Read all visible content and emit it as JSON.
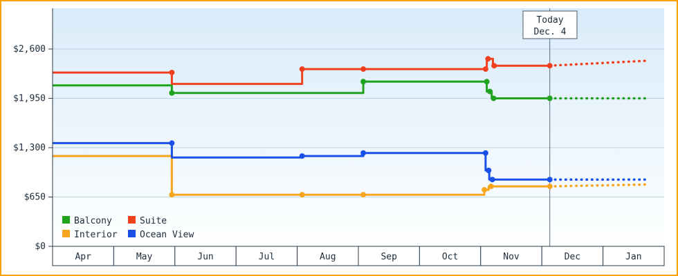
{
  "chart_data": {
    "type": "line",
    "style": "stepped-price-history-with-dotted-forecast",
    "x_months": [
      "Apr",
      "May",
      "Jun",
      "Jul",
      "Aug",
      "Sep",
      "Oct",
      "Nov",
      "Dec",
      "Jan"
    ],
    "y_ticks": [
      {
        "value": 0,
        "label": "$0"
      },
      {
        "value": 650,
        "label": "$650"
      },
      {
        "value": 1300,
        "label": "$1,300"
      },
      {
        "value": 1950,
        "label": "$1,950"
      },
      {
        "value": 2600,
        "label": "$2,600"
      }
    ],
    "today": {
      "line1": "Today",
      "line2": "Dec. 4",
      "month_index": 8.13
    },
    "colors": {
      "frame_border": "#ffa200",
      "grid": "#b9d2e6",
      "axis": "#2a3a4a",
      "plot_bg_top": "#d9ebf9",
      "plot_bg_bottom": "#feffff",
      "today_line": "#5a6b7a"
    },
    "legend": {
      "items": [
        {
          "label": "Balcony",
          "color": "#1fa31f"
        },
        {
          "label": "Suite",
          "color": "#f0401e"
        },
        {
          "label": "Interior",
          "color": "#f7a51f"
        },
        {
          "label": "Ocean View",
          "color": "#1850e8"
        }
      ]
    },
    "series": [
      {
        "name": "Interior",
        "color": "#f7a51f",
        "points": [
          [
            0,
            1190
          ],
          [
            1.95,
            1190
          ],
          [
            1.95,
            680
          ],
          [
            7.06,
            680
          ],
          [
            7.06,
            745
          ],
          [
            7.13,
            745
          ],
          [
            7.13,
            790
          ],
          [
            8.13,
            790
          ]
        ],
        "markers": [
          [
            1.95,
            680
          ],
          [
            4.08,
            680
          ],
          [
            5.08,
            680
          ],
          [
            7.06,
            745
          ],
          [
            7.17,
            790
          ],
          [
            8.13,
            790
          ]
        ],
        "forecast": [
          [
            8.13,
            790
          ],
          [
            9.7,
            815
          ]
        ]
      },
      {
        "name": "Ocean View",
        "color": "#1850e8",
        "points": [
          [
            0,
            1360
          ],
          [
            1.95,
            1360
          ],
          [
            1.95,
            1170
          ],
          [
            4.08,
            1170
          ],
          [
            4.08,
            1190
          ],
          [
            5.08,
            1190
          ],
          [
            5.08,
            1230
          ],
          [
            7.08,
            1230
          ],
          [
            7.08,
            1000
          ],
          [
            7.14,
            1000
          ],
          [
            7.14,
            880
          ],
          [
            8.13,
            880
          ]
        ],
        "markers": [
          [
            1.95,
            1360
          ],
          [
            4.08,
            1190
          ],
          [
            5.08,
            1230
          ],
          [
            7.08,
            1230
          ],
          [
            7.13,
            1000
          ],
          [
            7.19,
            880
          ],
          [
            8.13,
            880
          ]
        ],
        "forecast": [
          [
            8.13,
            880
          ],
          [
            9.7,
            880
          ]
        ]
      },
      {
        "name": "Balcony",
        "color": "#1fa31f",
        "points": [
          [
            0,
            2120
          ],
          [
            1.95,
            2120
          ],
          [
            1.95,
            2020
          ],
          [
            5.08,
            2020
          ],
          [
            5.08,
            2170
          ],
          [
            7.1,
            2170
          ],
          [
            7.1,
            2040
          ],
          [
            7.18,
            2040
          ],
          [
            7.18,
            1950
          ],
          [
            8.13,
            1950
          ]
        ],
        "markers": [
          [
            1.95,
            2020
          ],
          [
            5.08,
            2170
          ],
          [
            7.1,
            2170
          ],
          [
            7.15,
            2040
          ],
          [
            7.21,
            1950
          ],
          [
            8.13,
            1950
          ]
        ],
        "forecast": [
          [
            8.13,
            1950
          ],
          [
            9.7,
            1950
          ]
        ]
      },
      {
        "name": "Suite",
        "color": "#f0401e",
        "points": [
          [
            0,
            2290
          ],
          [
            1.95,
            2290
          ],
          [
            1.95,
            2140
          ],
          [
            4.08,
            2140
          ],
          [
            4.08,
            2335
          ],
          [
            7.1,
            2335
          ],
          [
            7.1,
            2470
          ],
          [
            7.2,
            2470
          ],
          [
            7.2,
            2380
          ],
          [
            8.13,
            2380
          ]
        ],
        "markers": [
          [
            1.95,
            2290
          ],
          [
            4.08,
            2335
          ],
          [
            5.08,
            2335
          ],
          [
            7.08,
            2335
          ],
          [
            7.12,
            2470
          ],
          [
            7.22,
            2380
          ],
          [
            8.13,
            2380
          ]
        ],
        "forecast": [
          [
            8.13,
            2380
          ],
          [
            9.7,
            2445
          ]
        ]
      }
    ]
  }
}
